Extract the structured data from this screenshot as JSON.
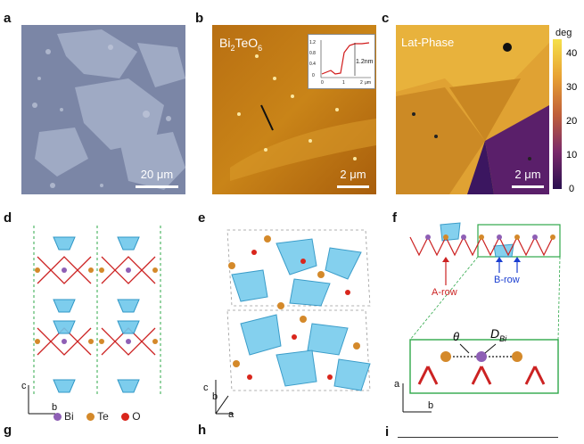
{
  "panels": {
    "a": {
      "label": "a",
      "scale": "20 μm"
    },
    "b": {
      "label": "b",
      "title_main": "Bi",
      "title_sub1": "2",
      "title_mid": "TeO",
      "title_sub2": "6",
      "scale": "2 μm",
      "inset": {
        "height_label": "1.2nm",
        "y_ticks": [
          "1.2",
          "0.8",
          "0.4",
          "0"
        ],
        "x_ticks": [
          "0",
          "1",
          "2"
        ],
        "x_unit": "μm"
      }
    },
    "c": {
      "label": "c",
      "title": "Lat-Phase",
      "scale": "2 μm",
      "colorbar": {
        "unit": "deg",
        "ticks": [
          "40",
          "30",
          "20",
          "10",
          "0"
        ]
      }
    },
    "d": {
      "label": "d",
      "axis_c": "c",
      "axis_b": "b"
    },
    "e": {
      "label": "e",
      "axis_b": "b",
      "axis_c": "c",
      "axis_a": "a"
    },
    "f": {
      "label": "f",
      "a_row": "A-row",
      "b_row": "B-row",
      "theta": "θ",
      "dbi_main": "D",
      "dbi_sub": "Bi",
      "axis_a": "a",
      "axis_b": "b"
    },
    "g": {
      "label": "g"
    },
    "h": {
      "label": "h"
    },
    "i": {
      "label": "i"
    }
  },
  "legend": [
    {
      "name": "Bi",
      "color": "#8e5fb5"
    },
    {
      "name": "Te",
      "color": "#d4892a"
    },
    {
      "name": "O",
      "color": "#d9261c"
    }
  ]
}
